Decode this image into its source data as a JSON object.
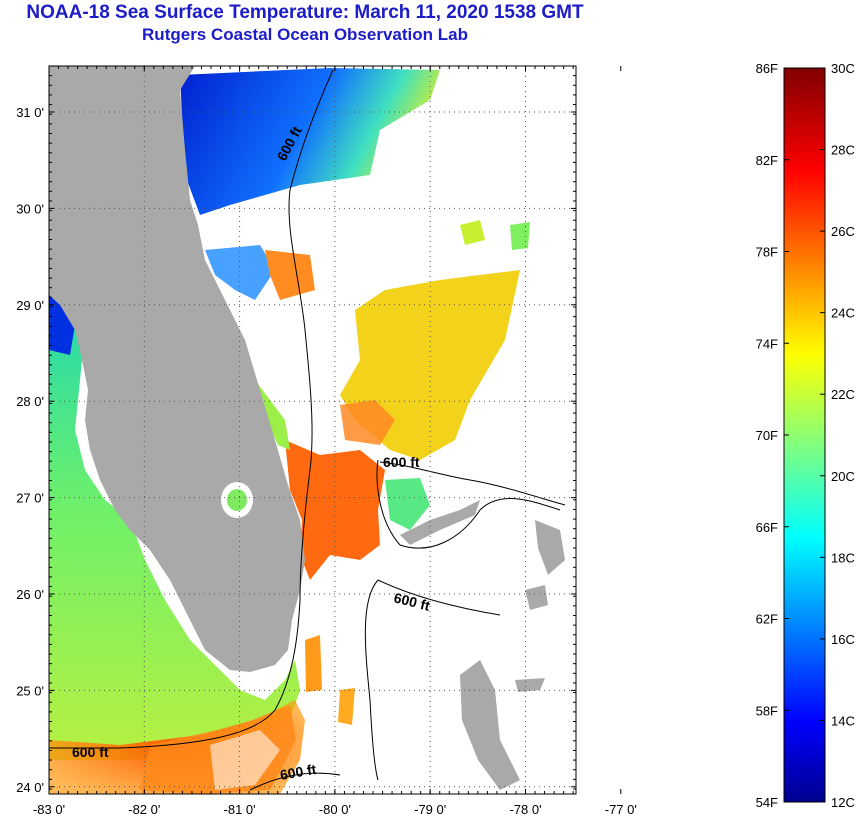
{
  "title": "NOAA-18 Sea Surface Temperature:  March 11, 2020 1538 GMT",
  "subtitle": "Rutgers Coastal Ocean Observation Lab",
  "map": {
    "lat_ticks": [
      {
        "value": 31,
        "label": "31 0'"
      },
      {
        "value": 30,
        "label": "30 0'"
      },
      {
        "value": 29,
        "label": "29 0'"
      },
      {
        "value": 28,
        "label": "28 0'"
      },
      {
        "value": 27,
        "label": "27 0'"
      },
      {
        "value": 26,
        "label": "26 0'"
      },
      {
        "value": 25,
        "label": "25 0'"
      },
      {
        "value": 24,
        "label": "24 0'"
      }
    ],
    "lon_ticks": [
      {
        "value": -83,
        "label": "-83 0'"
      },
      {
        "value": -82,
        "label": "-82 0'"
      },
      {
        "value": -81,
        "label": "-81 0'"
      },
      {
        "value": -80,
        "label": "-80 0'"
      },
      {
        "value": -79,
        "label": "-79 0'"
      },
      {
        "value": -78,
        "label": "-78 0'"
      },
      {
        "value": -77,
        "label": "-77 0'"
      }
    ],
    "contour_labels": [
      "600 ft",
      "600 ft",
      "600 ft",
      "600 ft",
      "600 ft"
    ],
    "land_color": "#a9a9a9",
    "grid": "dotted"
  },
  "colorbar": {
    "fahrenheit": [
      "86F",
      "82F",
      "78F",
      "74F",
      "70F",
      "66F",
      "62F",
      "58F",
      "54F"
    ],
    "celsius": [
      "30C",
      "28C",
      "26C",
      "24C",
      "22C",
      "20C",
      "18C",
      "16C",
      "14C",
      "12C"
    ],
    "colormap": "jet"
  }
}
